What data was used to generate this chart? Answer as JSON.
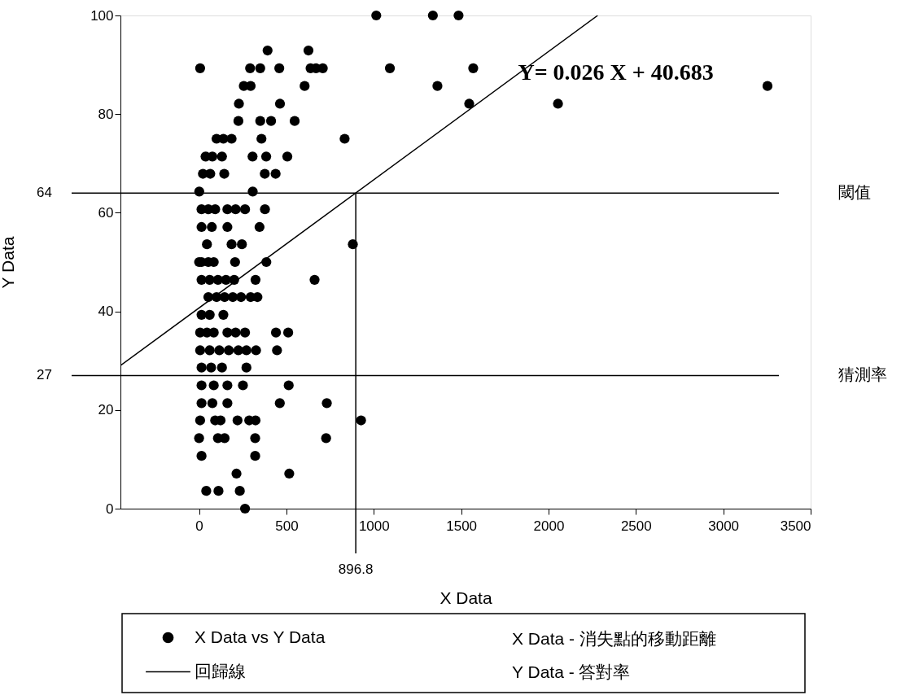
{
  "chart_data": {
    "type": "scatter",
    "xlabel": "X Data",
    "ylabel": "Y Data",
    "xlim": [
      -450,
      3500
    ],
    "xticks": [
      0,
      500,
      1000,
      1500,
      2000,
      2500,
      3000,
      3500
    ],
    "ylim": [
      0,
      100
    ],
    "yticks": [
      0,
      20,
      40,
      60,
      80,
      100
    ],
    "grid": false,
    "legend": "bottom",
    "series": [
      {
        "name": "X Data vs Y Data",
        "marker": "circle",
        "color": "#000000",
        "x": [
          1014,
          1338,
          1485,
          392,
          626,
          6,
          292,
          350,
          459,
          638,
          669,
          708,
          1092,
          1569,
          256,
          295,
          604,
          1364,
          3253,
          228,
          463,
          1546,
          2054,
          225,
          350,
          412,
          547,
          100,
          139,
          186,
          357,
          833,
          37,
          76,
          131,
          306,
          384,
          505,
          22,
          64,
          144,
          376,
          438,
          1,
          307,
          14,
          53,
          92,
          162,
          209,
          263,
          377,
          14,
          73,
          162,
          346,
          45,
          186,
          245,
          880,
          0,
          14,
          53,
          84,
          206,
          385,
          14,
          61,
          108,
          154,
          201,
          323,
          661,
          53,
          100,
          146,
          193,
          240,
          295,
          334,
          14,
          61,
          139,
          6,
          45,
          84,
          162,
          209,
          263,
          440,
          510,
          6,
          61,
          116,
          170,
          225,
          271,
          326,
          446,
          14,
          69,
          131,
          271,
          14,
          84,
          162,
          251,
          513,
          14,
          76,
          162,
          462,
          731,
          6,
          92,
          123,
          220,
          287,
          323,
          927,
          0,
          108,
          146,
          321,
          727,
          14,
          321,
          214,
          516,
          41,
          111,
          233,
          263
        ],
        "values": [
          100,
          100,
          100,
          92.9,
          92.9,
          89.3,
          89.3,
          89.3,
          89.3,
          89.3,
          89.3,
          89.3,
          89.3,
          89.3,
          85.7,
          85.7,
          85.7,
          85.7,
          85.7,
          82.1,
          82.1,
          82.1,
          82.1,
          78.6,
          78.6,
          78.6,
          78.6,
          75,
          75,
          75,
          75,
          75,
          71.4,
          71.4,
          71.4,
          71.4,
          71.4,
          71.4,
          67.9,
          67.9,
          67.9,
          67.9,
          67.9,
          64.3,
          64.3,
          60.7,
          60.7,
          60.7,
          60.7,
          60.7,
          60.7,
          60.7,
          57.1,
          57.1,
          57.1,
          57.1,
          53.6,
          53.6,
          53.6,
          53.6,
          50,
          50,
          50,
          50,
          50,
          50,
          46.4,
          46.4,
          46.4,
          46.4,
          46.4,
          46.4,
          46.4,
          42.9,
          42.9,
          42.9,
          42.9,
          42.9,
          42.9,
          42.9,
          39.3,
          39.3,
          39.3,
          35.7,
          35.7,
          35.7,
          35.7,
          35.7,
          35.7,
          35.7,
          35.7,
          32.1,
          32.1,
          32.1,
          32.1,
          32.1,
          32.1,
          32.1,
          32.1,
          28.6,
          28.6,
          28.6,
          28.6,
          25,
          25,
          25,
          25,
          25,
          21.4,
          21.4,
          21.4,
          21.4,
          21.4,
          17.9,
          17.9,
          17.9,
          17.9,
          17.9,
          17.9,
          17.9,
          14.3,
          14.3,
          14.3,
          14.3,
          14.3,
          10.7,
          10.7,
          7.1,
          7.1,
          3.6,
          3.6,
          3.6,
          0
        ]
      },
      {
        "name": "回歸線",
        "type": "line",
        "color": "#000000",
        "line_style": "solid",
        "x": [
          -450,
          2281.4
        ],
        "values": [
          29,
          100
        ]
      }
    ],
    "ref_lines": [
      {
        "axis": "y",
        "value": 64,
        "label": "64",
        "color": "#000000"
      },
      {
        "axis": "y",
        "value": 27,
        "label": "27",
        "color": "#000000"
      },
      {
        "axis": "x",
        "value": 896.8,
        "label": "896.8",
        "color": "#000000"
      }
    ],
    "annotations": [
      {
        "text": "Y= 0.026 X + 40.683",
        "x": 1825,
        "y": 88.3
      },
      "閾值",
      "猜測率",
      "X Data - 消失點的移動距離",
      "Y Data - 答對率"
    ]
  }
}
